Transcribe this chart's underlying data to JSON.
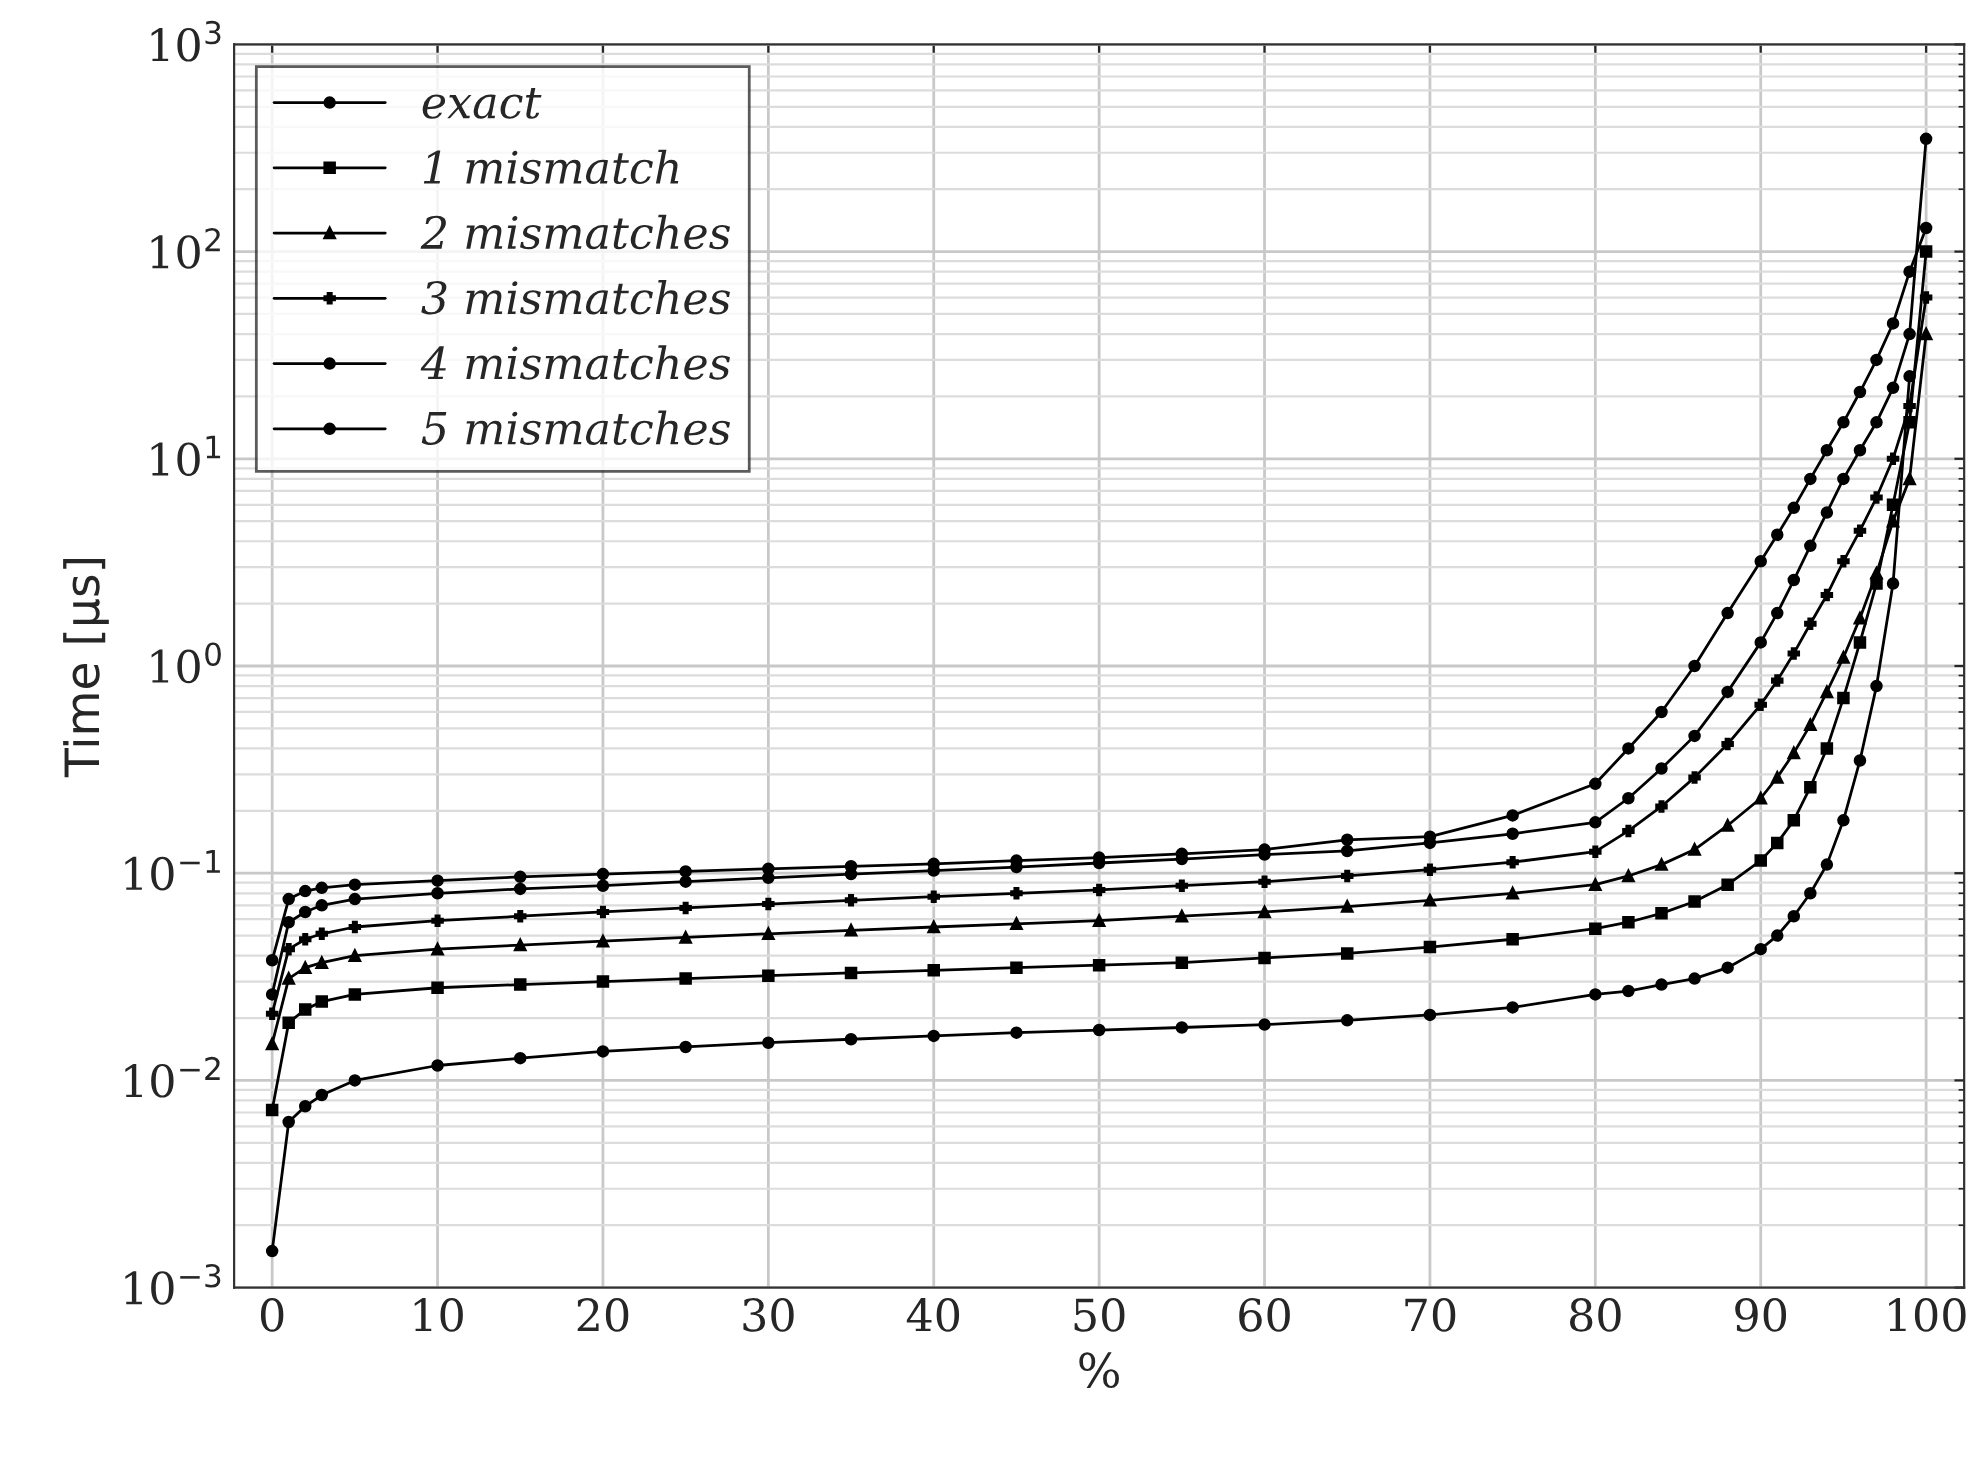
{
  "chart_data": {
    "type": "line",
    "xlabel": "%",
    "ylabel": "Time [μs]",
    "x": [
      0,
      1,
      2,
      3,
      5,
      10,
      15,
      20,
      25,
      30,
      35,
      40,
      45,
      50,
      55,
      60,
      65,
      70,
      75,
      80,
      82,
      84,
      86,
      88,
      90,
      91,
      92,
      93,
      94,
      95,
      96,
      97,
      98,
      99,
      100
    ],
    "series": [
      {
        "name": "exact",
        "color": "#000000",
        "marker": "circle",
        "values": [
          0.0015,
          0.0063,
          0.0075,
          0.0085,
          0.01,
          0.0118,
          0.0128,
          0.0138,
          0.0145,
          0.0152,
          0.0158,
          0.0164,
          0.017,
          0.0175,
          0.018,
          0.0186,
          0.0195,
          0.0207,
          0.0225,
          0.026,
          0.027,
          0.029,
          0.031,
          0.035,
          0.043,
          0.05,
          0.062,
          0.08,
          0.11,
          0.18,
          0.35,
          0.8,
          2.5,
          25,
          null
        ]
      },
      {
        "name": "1 mismatch",
        "color": "#000000",
        "marker": "square",
        "values": [
          0.0072,
          0.019,
          0.022,
          0.024,
          0.026,
          0.028,
          0.029,
          0.03,
          0.031,
          0.032,
          0.033,
          0.034,
          0.035,
          0.036,
          0.037,
          0.039,
          0.041,
          0.044,
          0.048,
          0.054,
          0.058,
          0.064,
          0.073,
          0.088,
          0.115,
          0.14,
          0.18,
          0.26,
          0.4,
          0.7,
          1.3,
          2.5,
          6,
          15,
          100
        ]
      },
      {
        "name": "2 mismatches",
        "color": "#000000",
        "marker": "triangle",
        "values": [
          0.015,
          0.031,
          0.035,
          0.037,
          0.04,
          0.043,
          0.045,
          0.047,
          0.049,
          0.051,
          0.053,
          0.055,
          0.057,
          0.059,
          0.062,
          0.065,
          0.069,
          0.074,
          0.08,
          0.088,
          0.097,
          0.11,
          0.13,
          0.17,
          0.23,
          0.29,
          0.38,
          0.52,
          0.75,
          1.1,
          1.7,
          2.8,
          5,
          8,
          40
        ]
      },
      {
        "name": "3 mismatches",
        "color": "#000000",
        "marker": "cross",
        "values": [
          0.021,
          0.043,
          0.048,
          0.051,
          0.055,
          0.059,
          0.062,
          0.065,
          0.068,
          0.071,
          0.074,
          0.077,
          0.08,
          0.083,
          0.087,
          0.091,
          0.097,
          0.104,
          0.113,
          0.127,
          0.16,
          0.21,
          0.29,
          0.42,
          0.65,
          0.85,
          1.15,
          1.6,
          2.2,
          3.2,
          4.5,
          6.5,
          10,
          18,
          60
        ]
      },
      {
        "name": "4 mismatches",
        "color": "#000000",
        "marker": "circle",
        "values": [
          0.026,
          0.058,
          0.065,
          0.07,
          0.075,
          0.08,
          0.084,
          0.087,
          0.091,
          0.095,
          0.099,
          0.103,
          0.107,
          0.112,
          0.117,
          0.123,
          0.128,
          0.14,
          0.155,
          0.176,
          0.23,
          0.32,
          0.46,
          0.75,
          1.3,
          1.8,
          2.6,
          3.8,
          5.5,
          8,
          11,
          15,
          22,
          40,
          350
        ]
      },
      {
        "name": "5 mismatches",
        "color": "#000000",
        "marker": "circle",
        "values": [
          0.038,
          0.075,
          0.082,
          0.085,
          0.088,
          0.092,
          0.096,
          0.099,
          0.102,
          0.105,
          0.108,
          0.111,
          0.115,
          0.119,
          0.124,
          0.13,
          0.145,
          0.15,
          0.19,
          0.27,
          0.4,
          0.6,
          1.0,
          1.8,
          3.2,
          4.3,
          5.8,
          8,
          11,
          15,
          21,
          30,
          45,
          80,
          130
        ]
      }
    ],
    "log": "y",
    "grid": true,
    "legend": "top left",
    "line_style": "solid",
    "xlim": [
      -2.3,
      102.3
    ],
    "xticks": [
      0,
      10,
      20,
      30,
      40,
      50,
      60,
      70,
      80,
      90,
      100
    ],
    "ylim": [
      0.001,
      1000
    ],
    "yticks": [
      {
        "value": 0.001,
        "label": "10$^{−3}$"
      },
      {
        "value": 0.01,
        "label": "10$^{−2}$"
      },
      {
        "value": 0.1,
        "label": "10$^{−1}$"
      },
      {
        "value": 1,
        "label": "10$^{0}$"
      },
      {
        "value": 10,
        "label": "10$^{1}$"
      },
      {
        "value": 100,
        "label": "10$^{2}$"
      },
      {
        "value": 1000,
        "label": "10$^{3}$"
      }
    ]
  }
}
